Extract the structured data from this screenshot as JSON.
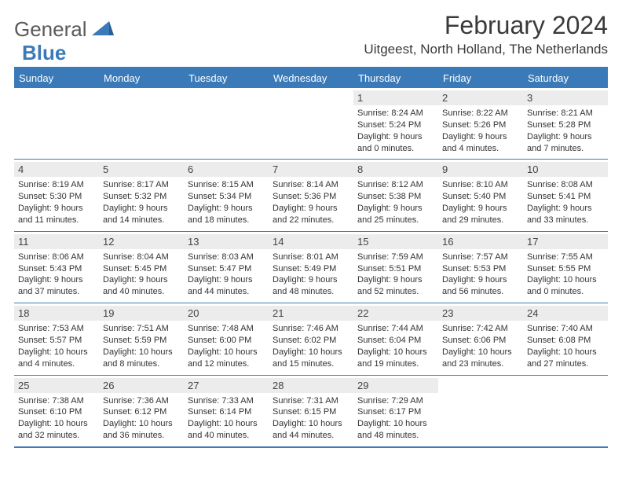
{
  "branding": {
    "logo_part1": "General",
    "logo_part2": "Blue"
  },
  "header": {
    "month_title": "February 2024",
    "location": "Uitgeest, North Holland, The Netherlands"
  },
  "colors": {
    "accent": "#3b7ab8",
    "header_bg": "#3b7ab8",
    "header_text": "#ffffff",
    "daynum_bg": "#ececec",
    "body_text": "#333333"
  },
  "day_names": [
    "Sunday",
    "Monday",
    "Tuesday",
    "Wednesday",
    "Thursday",
    "Friday",
    "Saturday"
  ],
  "labels": {
    "sunrise": "Sunrise:",
    "sunset": "Sunset:",
    "daylight": "Daylight:"
  },
  "weeks": [
    [
      null,
      null,
      null,
      null,
      {
        "d": "1",
        "sr": "8:24 AM",
        "ss": "5:24 PM",
        "dl": "9 hours and 0 minutes."
      },
      {
        "d": "2",
        "sr": "8:22 AM",
        "ss": "5:26 PM",
        "dl": "9 hours and 4 minutes."
      },
      {
        "d": "3",
        "sr": "8:21 AM",
        "ss": "5:28 PM",
        "dl": "9 hours and 7 minutes."
      }
    ],
    [
      {
        "d": "4",
        "sr": "8:19 AM",
        "ss": "5:30 PM",
        "dl": "9 hours and 11 minutes."
      },
      {
        "d": "5",
        "sr": "8:17 AM",
        "ss": "5:32 PM",
        "dl": "9 hours and 14 minutes."
      },
      {
        "d": "6",
        "sr": "8:15 AM",
        "ss": "5:34 PM",
        "dl": "9 hours and 18 minutes."
      },
      {
        "d": "7",
        "sr": "8:14 AM",
        "ss": "5:36 PM",
        "dl": "9 hours and 22 minutes."
      },
      {
        "d": "8",
        "sr": "8:12 AM",
        "ss": "5:38 PM",
        "dl": "9 hours and 25 minutes."
      },
      {
        "d": "9",
        "sr": "8:10 AM",
        "ss": "5:40 PM",
        "dl": "9 hours and 29 minutes."
      },
      {
        "d": "10",
        "sr": "8:08 AM",
        "ss": "5:41 PM",
        "dl": "9 hours and 33 minutes."
      }
    ],
    [
      {
        "d": "11",
        "sr": "8:06 AM",
        "ss": "5:43 PM",
        "dl": "9 hours and 37 minutes."
      },
      {
        "d": "12",
        "sr": "8:04 AM",
        "ss": "5:45 PM",
        "dl": "9 hours and 40 minutes."
      },
      {
        "d": "13",
        "sr": "8:03 AM",
        "ss": "5:47 PM",
        "dl": "9 hours and 44 minutes."
      },
      {
        "d": "14",
        "sr": "8:01 AM",
        "ss": "5:49 PM",
        "dl": "9 hours and 48 minutes."
      },
      {
        "d": "15",
        "sr": "7:59 AM",
        "ss": "5:51 PM",
        "dl": "9 hours and 52 minutes."
      },
      {
        "d": "16",
        "sr": "7:57 AM",
        "ss": "5:53 PM",
        "dl": "9 hours and 56 minutes."
      },
      {
        "d": "17",
        "sr": "7:55 AM",
        "ss": "5:55 PM",
        "dl": "10 hours and 0 minutes."
      }
    ],
    [
      {
        "d": "18",
        "sr": "7:53 AM",
        "ss": "5:57 PM",
        "dl": "10 hours and 4 minutes."
      },
      {
        "d": "19",
        "sr": "7:51 AM",
        "ss": "5:59 PM",
        "dl": "10 hours and 8 minutes."
      },
      {
        "d": "20",
        "sr": "7:48 AM",
        "ss": "6:00 PM",
        "dl": "10 hours and 12 minutes."
      },
      {
        "d": "21",
        "sr": "7:46 AM",
        "ss": "6:02 PM",
        "dl": "10 hours and 15 minutes."
      },
      {
        "d": "22",
        "sr": "7:44 AM",
        "ss": "6:04 PM",
        "dl": "10 hours and 19 minutes."
      },
      {
        "d": "23",
        "sr": "7:42 AM",
        "ss": "6:06 PM",
        "dl": "10 hours and 23 minutes."
      },
      {
        "d": "24",
        "sr": "7:40 AM",
        "ss": "6:08 PM",
        "dl": "10 hours and 27 minutes."
      }
    ],
    [
      {
        "d": "25",
        "sr": "7:38 AM",
        "ss": "6:10 PM",
        "dl": "10 hours and 32 minutes."
      },
      {
        "d": "26",
        "sr": "7:36 AM",
        "ss": "6:12 PM",
        "dl": "10 hours and 36 minutes."
      },
      {
        "d": "27",
        "sr": "7:33 AM",
        "ss": "6:14 PM",
        "dl": "10 hours and 40 minutes."
      },
      {
        "d": "28",
        "sr": "7:31 AM",
        "ss": "6:15 PM",
        "dl": "10 hours and 44 minutes."
      },
      {
        "d": "29",
        "sr": "7:29 AM",
        "ss": "6:17 PM",
        "dl": "10 hours and 48 minutes."
      },
      null,
      null
    ]
  ]
}
